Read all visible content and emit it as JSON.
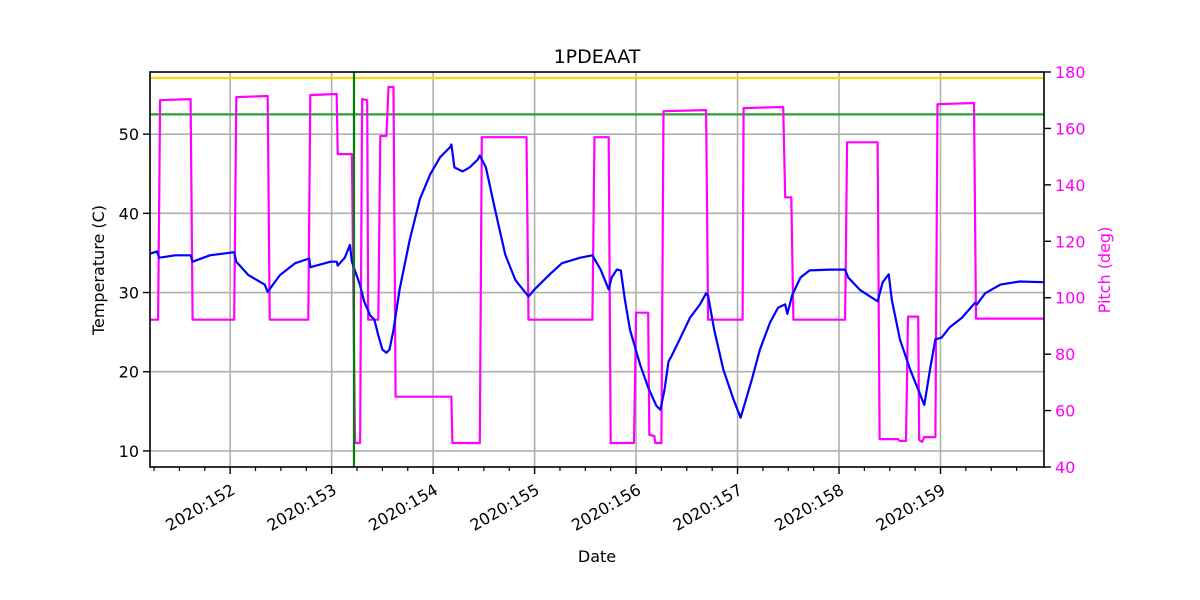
{
  "chart_data": {
    "type": "line",
    "title": "1PDEAAT",
    "xlabel": "Date",
    "ylabel": "Temperature (C)",
    "y2label": "Pitch (deg)",
    "xlim": [
      151.21,
      160.02
    ],
    "ylim": [
      7.97,
      57.85
    ],
    "y2lim": [
      40,
      180
    ],
    "grid": true,
    "x_ticks": [
      {
        "value": 152,
        "label": "2020:152"
      },
      {
        "value": 153,
        "label": "2020:153"
      },
      {
        "value": 154,
        "label": "2020:154"
      },
      {
        "value": 155,
        "label": "2020:155"
      },
      {
        "value": 156,
        "label": "2020:156"
      },
      {
        "value": 157,
        "label": "2020:157"
      },
      {
        "value": 158,
        "label": "2020:158"
      },
      {
        "value": 159,
        "label": "2020:159"
      }
    ],
    "x_minor_tick_step": 0.25,
    "y_ticks": [
      10,
      20,
      30,
      40,
      50
    ],
    "y2_ticks": [
      40,
      60,
      80,
      100,
      120,
      140,
      160,
      180
    ],
    "hlines": [
      {
        "name": "planning-limit",
        "y": 57.1,
        "color": "#ffd700"
      },
      {
        "name": "caution-limit",
        "y": 52.5,
        "color": "#2ca02c"
      }
    ],
    "vlines": [
      {
        "name": "current-time",
        "x": 153.22,
        "color": "#008000"
      }
    ],
    "series": [
      {
        "name": "Temperature",
        "axis": "left",
        "color": "#0000ff",
        "points": [
          [
            151.21,
            34.9
          ],
          [
            151.28,
            35.2
          ],
          [
            151.3,
            34.4
          ],
          [
            151.46,
            34.7
          ],
          [
            151.61,
            34.7
          ],
          [
            151.63,
            33.9
          ],
          [
            151.8,
            34.7
          ],
          [
            152.04,
            35.1
          ],
          [
            152.06,
            33.9
          ],
          [
            152.18,
            32.2
          ],
          [
            152.34,
            31.0
          ],
          [
            152.37,
            30.1
          ],
          [
            152.49,
            32.2
          ],
          [
            152.64,
            33.7
          ],
          [
            152.78,
            34.3
          ],
          [
            152.79,
            33.2
          ],
          [
            152.99,
            33.9
          ],
          [
            153.05,
            33.9
          ],
          [
            153.06,
            33.4
          ],
          [
            153.13,
            34.4
          ],
          [
            153.18,
            36.0
          ],
          [
            153.2,
            33.9
          ],
          [
            153.28,
            30.9
          ],
          [
            153.32,
            28.9
          ],
          [
            153.38,
            27.1
          ],
          [
            153.42,
            26.6
          ],
          [
            153.46,
            24.6
          ],
          [
            153.5,
            22.8
          ],
          [
            153.54,
            22.4
          ],
          [
            153.57,
            22.8
          ],
          [
            153.61,
            25.3
          ],
          [
            153.67,
            30.4
          ],
          [
            153.77,
            36.7
          ],
          [
            153.87,
            41.8
          ],
          [
            153.97,
            44.9
          ],
          [
            154.07,
            47.1
          ],
          [
            154.17,
            48.4
          ],
          [
            154.18,
            48.7
          ],
          [
            154.21,
            45.8
          ],
          [
            154.29,
            45.3
          ],
          [
            154.36,
            45.8
          ],
          [
            154.44,
            46.8
          ],
          [
            154.46,
            47.3
          ],
          [
            154.52,
            45.8
          ],
          [
            154.61,
            40.5
          ],
          [
            154.71,
            34.8
          ],
          [
            154.81,
            31.6
          ],
          [
            154.94,
            29.5
          ],
          [
            155.0,
            30.4
          ],
          [
            155.15,
            32.3
          ],
          [
            155.27,
            33.7
          ],
          [
            155.45,
            34.4
          ],
          [
            155.57,
            34.7
          ],
          [
            155.65,
            32.9
          ],
          [
            155.73,
            30.4
          ],
          [
            155.76,
            31.9
          ],
          [
            155.81,
            32.9
          ],
          [
            155.85,
            32.8
          ],
          [
            155.89,
            29.1
          ],
          [
            155.94,
            25.3
          ],
          [
            156.04,
            20.9
          ],
          [
            156.12,
            18.0
          ],
          [
            156.2,
            15.7
          ],
          [
            156.24,
            15.2
          ],
          [
            156.28,
            17.7
          ],
          [
            156.32,
            21.3
          ],
          [
            156.35,
            22.0
          ],
          [
            156.43,
            24.1
          ],
          [
            156.53,
            26.8
          ],
          [
            156.63,
            28.5
          ],
          [
            156.69,
            29.9
          ],
          [
            156.71,
            29.6
          ],
          [
            156.77,
            25.3
          ],
          [
            156.86,
            20.3
          ],
          [
            156.96,
            16.5
          ],
          [
            157.03,
            14.2
          ],
          [
            157.07,
            15.9
          ],
          [
            157.14,
            19.0
          ],
          [
            157.22,
            22.8
          ],
          [
            157.32,
            26.2
          ],
          [
            157.4,
            28.1
          ],
          [
            157.47,
            28.5
          ],
          [
            157.49,
            27.3
          ],
          [
            157.54,
            29.7
          ],
          [
            157.62,
            31.9
          ],
          [
            157.71,
            32.8
          ],
          [
            157.91,
            32.9
          ],
          [
            158.06,
            32.9
          ],
          [
            158.09,
            31.9
          ],
          [
            158.21,
            30.3
          ],
          [
            158.38,
            28.9
          ],
          [
            158.43,
            31.3
          ],
          [
            158.49,
            32.3
          ],
          [
            158.52,
            29.1
          ],
          [
            158.6,
            24.1
          ],
          [
            158.7,
            20.3
          ],
          [
            158.8,
            17.1
          ],
          [
            158.84,
            15.8
          ],
          [
            158.9,
            20.5
          ],
          [
            158.95,
            24.1
          ],
          [
            159.01,
            24.3
          ],
          [
            159.09,
            25.6
          ],
          [
            159.21,
            26.8
          ],
          [
            159.34,
            28.7
          ],
          [
            159.36,
            28.5
          ],
          [
            159.44,
            29.9
          ],
          [
            159.59,
            31.0
          ],
          [
            159.78,
            31.4
          ],
          [
            160.02,
            31.3
          ]
        ]
      },
      {
        "name": "Pitch",
        "axis": "right",
        "color": "#ff00ff",
        "points": [
          [
            151.21,
            92.2
          ],
          [
            151.29,
            92.2
          ],
          [
            151.31,
            170.0
          ],
          [
            151.61,
            170.4
          ],
          [
            151.63,
            92.2
          ],
          [
            152.04,
            92.2
          ],
          [
            152.06,
            171.1
          ],
          [
            152.37,
            171.5
          ],
          [
            152.39,
            92.2
          ],
          [
            152.77,
            92.2
          ],
          [
            152.79,
            171.8
          ],
          [
            153.05,
            172.2
          ],
          [
            153.06,
            150.9
          ],
          [
            153.2,
            150.9
          ],
          [
            153.23,
            48.5
          ],
          [
            153.28,
            48.5
          ],
          [
            153.3,
            170.4
          ],
          [
            153.35,
            170.0
          ],
          [
            153.36,
            92.2
          ],
          [
            153.46,
            92.2
          ],
          [
            153.48,
            157.3
          ],
          [
            153.54,
            157.3
          ],
          [
            153.56,
            174.7
          ],
          [
            153.61,
            174.7
          ],
          [
            153.63,
            64.9
          ],
          [
            154.18,
            64.9
          ],
          [
            154.19,
            48.5
          ],
          [
            154.46,
            48.5
          ],
          [
            154.48,
            156.9
          ],
          [
            154.92,
            156.9
          ],
          [
            154.94,
            92.2
          ],
          [
            155.57,
            92.2
          ],
          [
            155.59,
            156.9
          ],
          [
            155.73,
            156.9
          ],
          [
            155.75,
            48.5
          ],
          [
            155.98,
            48.5
          ],
          [
            156.0,
            94.7
          ],
          [
            156.12,
            94.7
          ],
          [
            156.13,
            51.4
          ],
          [
            156.18,
            51.0
          ],
          [
            156.19,
            48.5
          ],
          [
            156.25,
            48.5
          ],
          [
            156.27,
            166.1
          ],
          [
            156.69,
            166.5
          ],
          [
            156.71,
            92.2
          ],
          [
            157.05,
            92.2
          ],
          [
            157.06,
            167.2
          ],
          [
            157.45,
            167.6
          ],
          [
            157.47,
            135.6
          ],
          [
            157.53,
            135.6
          ],
          [
            157.55,
            92.2
          ],
          [
            158.06,
            92.2
          ],
          [
            158.08,
            155.1
          ],
          [
            158.38,
            155.1
          ],
          [
            158.4,
            49.9
          ],
          [
            158.58,
            49.9
          ],
          [
            158.6,
            49.2
          ],
          [
            158.66,
            49.2
          ],
          [
            158.68,
            93.3
          ],
          [
            158.78,
            93.3
          ],
          [
            158.79,
            49.6
          ],
          [
            158.82,
            48.9
          ],
          [
            158.84,
            50.6
          ],
          [
            158.95,
            50.6
          ],
          [
            158.97,
            168.6
          ],
          [
            159.33,
            169.0
          ],
          [
            159.35,
            92.6
          ],
          [
            160.02,
            92.6
          ]
        ]
      }
    ]
  }
}
